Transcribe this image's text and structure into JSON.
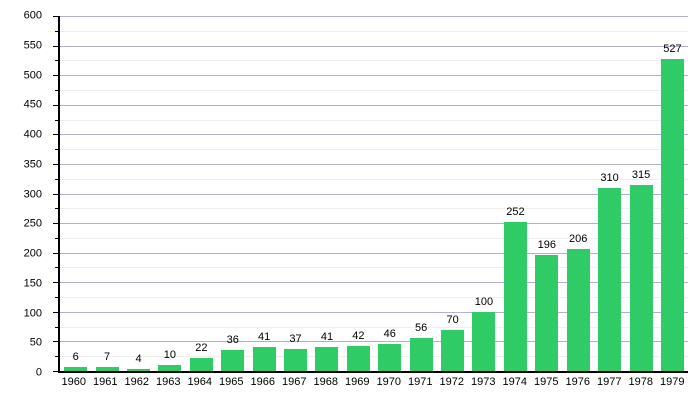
{
  "chart_data": {
    "type": "bar",
    "title": "",
    "xlabel": "",
    "ylabel": "",
    "categories": [
      "1960",
      "1961",
      "1962",
      "1963",
      "1964",
      "1965",
      "1966",
      "1967",
      "1968",
      "1969",
      "1970",
      "1971",
      "1972",
      "1973",
      "1974",
      "1975",
      "1976",
      "1977",
      "1978",
      "1979"
    ],
    "values": [
      6,
      7,
      4,
      10,
      22,
      36,
      41,
      37,
      41,
      42,
      46,
      56,
      70,
      100,
      252,
      196,
      206,
      310,
      315,
      527
    ],
    "value_labels_shown": true,
    "ylim": [
      0,
      600
    ],
    "y_tick_step": 50,
    "y_minor_step": 25,
    "grid": true,
    "legend": false,
    "colors": {
      "bar": "#2fcb66",
      "major_gridline": "#b3aed2",
      "minor_gridline": "#f1efe9",
      "axis": "#000000",
      "text": "#000000",
      "background": "#ffffff"
    }
  }
}
